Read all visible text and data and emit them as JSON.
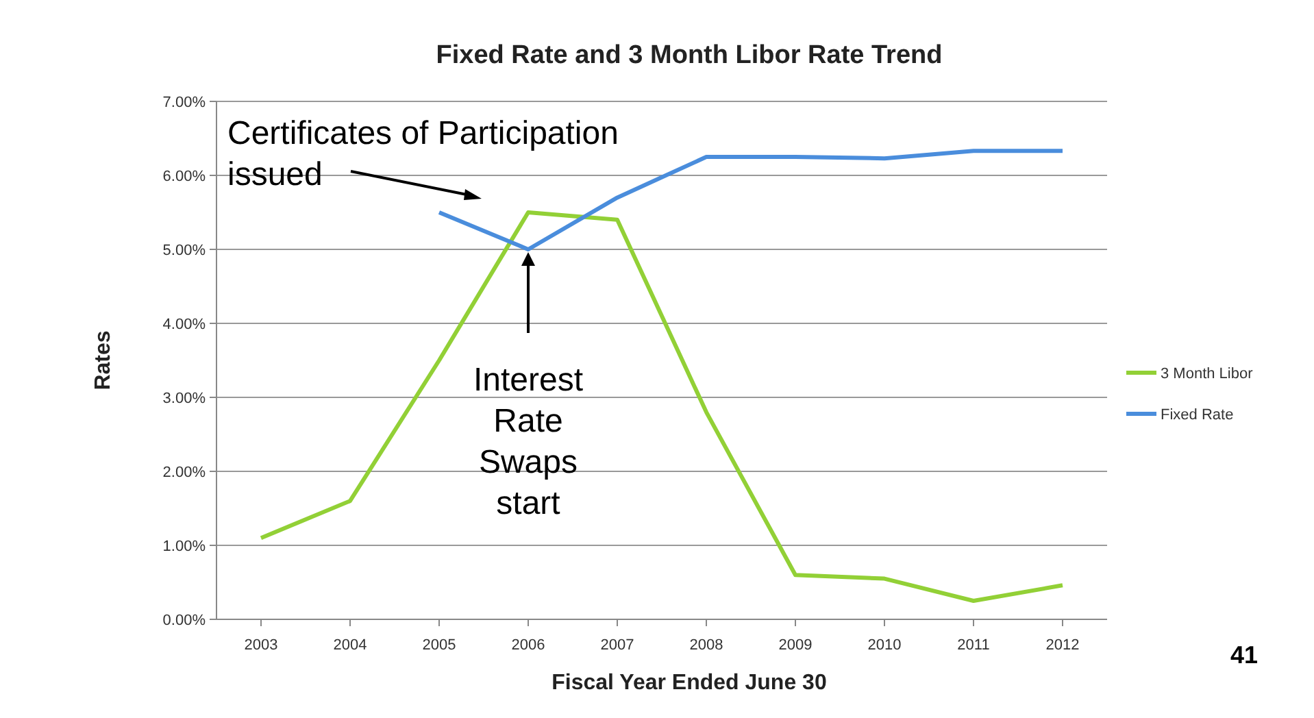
{
  "chart_data": {
    "type": "line",
    "title": "Fixed Rate and 3 Month Libor Rate Trend",
    "xlabel": "Fiscal Year Ended June 30",
    "ylabel": "Rates",
    "categories": [
      "2003",
      "2004",
      "2005",
      "2006",
      "2007",
      "2008",
      "2009",
      "2010",
      "2011",
      "2012"
    ],
    "series": [
      {
        "name": "3 Month Libor",
        "color": "#92d036",
        "values": [
          1.1,
          1.6,
          3.5,
          5.5,
          5.4,
          2.8,
          0.6,
          0.55,
          0.25,
          0.46
        ]
      },
      {
        "name": "Fixed Rate",
        "color": "#4a8ddc",
        "values": [
          null,
          null,
          5.5,
          5.0,
          5.7,
          6.25,
          6.25,
          6.23,
          6.33,
          6.33
        ]
      }
    ],
    "ylim": [
      0,
      7
    ],
    "yticks": [
      {
        "value": 0,
        "label": "0.00%"
      },
      {
        "value": 1,
        "label": "1.00%"
      },
      {
        "value": 2,
        "label": "2.00%"
      },
      {
        "value": 3,
        "label": "3.00%"
      },
      {
        "value": 4,
        "label": "4.00%"
      },
      {
        "value": 5,
        "label": "5.00%"
      },
      {
        "value": 6,
        "label": "6.00%"
      },
      {
        "value": 7,
        "label": "7.00%"
      }
    ],
    "grid": "y",
    "legend": "right",
    "marker": "none",
    "line_style": "solid",
    "annotations": [
      {
        "text": "Certificates of Participation issued",
        "x": "2005",
        "y": 5.5
      },
      {
        "text": "Interest Rate Swaps start",
        "x": "2006",
        "y": 5.0
      },
      "41"
    ]
  }
}
